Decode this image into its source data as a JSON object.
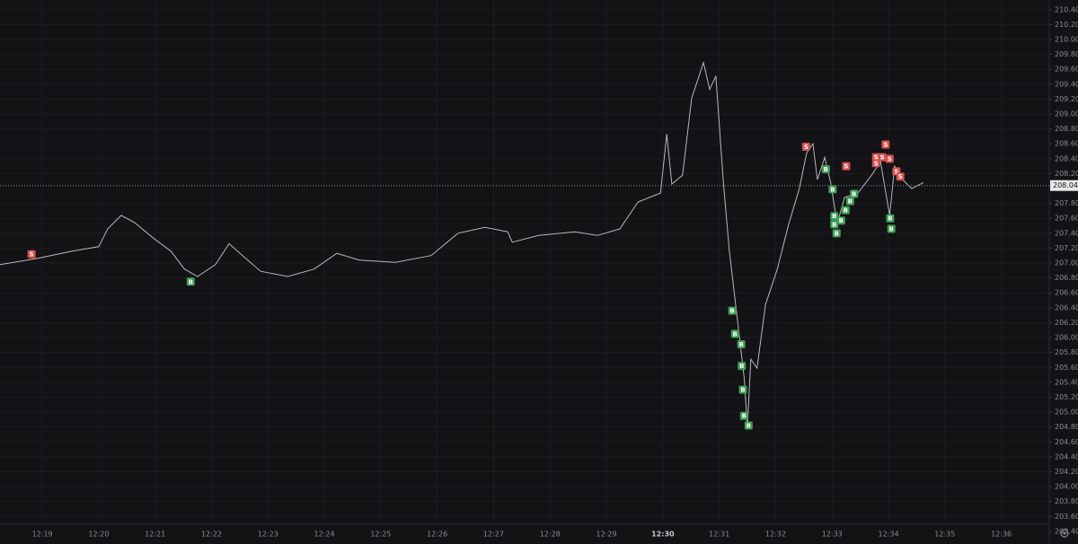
{
  "chart_data": {
    "type": "line",
    "x": [
      738.25,
      738.89,
      739.53,
      740.0,
      740.16,
      740.4,
      740.64,
      740.96,
      741.28,
      741.52,
      741.75,
      742.07,
      742.31,
      742.55,
      742.87,
      743.35,
      743.82,
      744.22,
      744.62,
      745.26,
      745.89,
      746.37,
      746.85,
      747.25,
      747.33,
      747.8,
      748.44,
      748.84,
      749.24,
      749.56,
      749.96,
      750.07,
      750.16,
      750.35,
      750.51,
      750.72,
      750.83,
      750.94,
      751.07,
      751.18,
      751.31,
      751.44,
      751.5,
      751.56,
      751.67,
      751.82,
      752.03,
      752.23,
      752.42,
      752.55,
      752.66,
      752.74,
      752.87,
      752.98,
      753.09,
      753.22,
      753.46,
      753.7,
      753.86,
      754.02,
      754.11,
      754.25,
      754.41,
      754.62
    ],
    "values": [
      206.98,
      207.06,
      207.16,
      207.22,
      207.46,
      207.64,
      207.54,
      207.34,
      207.16,
      206.92,
      206.82,
      206.98,
      207.26,
      207.1,
      206.89,
      206.82,
      206.92,
      207.13,
      207.04,
      207.01,
      207.1,
      207.4,
      207.48,
      207.42,
      207.28,
      207.37,
      207.42,
      207.37,
      207.46,
      207.82,
      207.94,
      208.73,
      208.06,
      208.18,
      209.21,
      209.69,
      209.33,
      209.51,
      208.12,
      207.16,
      206.32,
      205.47,
      204.81,
      205.71,
      205.59,
      206.44,
      206.92,
      207.52,
      208.0,
      208.48,
      208.6,
      208.12,
      208.42,
      208.06,
      207.52,
      207.88,
      207.94,
      208.18,
      208.36,
      207.64,
      208.3,
      208.12,
      208.0,
      208.08
    ],
    "color": "#b8b8bc",
    "markers": [
      {
        "side": "S",
        "x": 738.81,
        "y": 207.12
      },
      {
        "side": "B",
        "x": 741.63,
        "y": 206.75
      },
      {
        "side": "B",
        "x": 751.23,
        "y": 206.36
      },
      {
        "side": "B",
        "x": 751.28,
        "y": 206.05
      },
      {
        "side": "B",
        "x": 751.39,
        "y": 205.91
      },
      {
        "side": "B",
        "x": 751.4,
        "y": 205.62
      },
      {
        "side": "B",
        "x": 751.42,
        "y": 205.3
      },
      {
        "side": "B",
        "x": 751.44,
        "y": 204.95
      },
      {
        "side": "B",
        "x": 751.52,
        "y": 204.82
      },
      {
        "side": "S",
        "x": 752.54,
        "y": 208.56
      },
      {
        "side": "B",
        "x": 752.89,
        "y": 208.26
      },
      {
        "side": "S",
        "x": 753.25,
        "y": 208.3
      },
      {
        "side": "B",
        "x": 753.01,
        "y": 207.99
      },
      {
        "side": "B",
        "x": 753.04,
        "y": 207.63
      },
      {
        "side": "B",
        "x": 753.04,
        "y": 207.52
      },
      {
        "side": "B",
        "x": 753.08,
        "y": 207.4
      },
      {
        "side": "B",
        "x": 753.16,
        "y": 207.57
      },
      {
        "side": "B",
        "x": 753.24,
        "y": 207.71
      },
      {
        "side": "B",
        "x": 753.32,
        "y": 207.83
      },
      {
        "side": "B",
        "x": 753.39,
        "y": 207.93
      },
      {
        "side": "S",
        "x": 753.78,
        "y": 208.42
      },
      {
        "side": "S",
        "x": 753.78,
        "y": 208.34
      },
      {
        "side": "S",
        "x": 753.89,
        "y": 208.42
      },
      {
        "side": "S",
        "x": 753.95,
        "y": 208.59
      },
      {
        "side": "S",
        "x": 754.02,
        "y": 208.4
      },
      {
        "side": "S",
        "x": 754.14,
        "y": 208.23
      },
      {
        "side": "S",
        "x": 754.21,
        "y": 208.16
      },
      {
        "side": "B",
        "x": 754.03,
        "y": 207.6
      },
      {
        "side": "B",
        "x": 754.05,
        "y": 207.46
      }
    ],
    "marker_colors": {
      "B": "#3f9d55",
      "S": "#d64f4f"
    },
    "last_price": {
      "value": 208.04,
      "label": "208.04"
    },
    "xlim": [
      738.25,
      756.85
    ],
    "ylim": [
      203.23,
      210.53
    ],
    "xticks": [
      {
        "value": 739,
        "label": "12:19"
      },
      {
        "value": 740,
        "label": "12:20"
      },
      {
        "value": 741,
        "label": "12:21"
      },
      {
        "value": 742,
        "label": "12:22"
      },
      {
        "value": 743,
        "label": "12:23"
      },
      {
        "value": 744,
        "label": "12:24"
      },
      {
        "value": 745,
        "label": "12:25"
      },
      {
        "value": 746,
        "label": "12:26"
      },
      {
        "value": 747,
        "label": "12:27"
      },
      {
        "value": 748,
        "label": "12:28"
      },
      {
        "value": 749,
        "label": "12:29"
      },
      {
        "value": 750,
        "label": "12:30"
      },
      {
        "value": 751,
        "label": "12:31"
      },
      {
        "value": 752,
        "label": "12:32"
      },
      {
        "value": 753,
        "label": "12:33"
      },
      {
        "value": 754,
        "label": "12:34"
      },
      {
        "value": 755,
        "label": "12:35"
      },
      {
        "value": 756,
        "label": "12:36"
      }
    ],
    "bold_xticks": [
      750
    ],
    "yticks": [
      {
        "value": 210.4,
        "label": "210.40"
      },
      {
        "value": 210.2,
        "label": "210.20"
      },
      {
        "value": 210.0,
        "label": "210.00"
      },
      {
        "value": 209.8,
        "label": "209.80"
      },
      {
        "value": 209.6,
        "label": "209.60"
      },
      {
        "value": 209.4,
        "label": "209.40"
      },
      {
        "value": 209.2,
        "label": "209.20"
      },
      {
        "value": 209.0,
        "label": "209.00"
      },
      {
        "value": 208.8,
        "label": "208.80"
      },
      {
        "value": 208.6,
        "label": "208.60"
      },
      {
        "value": 208.4,
        "label": "208.40"
      },
      {
        "value": 208.2,
        "label": "208.20"
      },
      {
        "value": 207.8,
        "label": "207.80"
      },
      {
        "value": 207.6,
        "label": "207.60"
      },
      {
        "value": 207.4,
        "label": "207.40"
      },
      {
        "value": 207.2,
        "label": "207.20"
      },
      {
        "value": 207.0,
        "label": "207.00"
      },
      {
        "value": 206.8,
        "label": "206.80"
      },
      {
        "value": 206.6,
        "label": "206.60"
      },
      {
        "value": 206.4,
        "label": "206.40"
      },
      {
        "value": 206.2,
        "label": "206.20"
      },
      {
        "value": 206.0,
        "label": "206.00"
      },
      {
        "value": 205.8,
        "label": "205.80"
      },
      {
        "value": 205.6,
        "label": "205.60"
      },
      {
        "value": 205.4,
        "label": "205.40"
      },
      {
        "value": 205.2,
        "label": "205.20"
      },
      {
        "value": 205.0,
        "label": "205.00"
      },
      {
        "value": 204.8,
        "label": "204.80"
      },
      {
        "value": 204.6,
        "label": "204.60"
      },
      {
        "value": 204.4,
        "label": "204.40"
      },
      {
        "value": 204.2,
        "label": "204.20"
      },
      {
        "value": 204.0,
        "label": "204.00"
      },
      {
        "value": 203.8,
        "label": "203.80"
      },
      {
        "value": 203.6,
        "label": "203.60"
      },
      {
        "value": 203.4,
        "label": "203.40"
      }
    ],
    "grid": true
  }
}
